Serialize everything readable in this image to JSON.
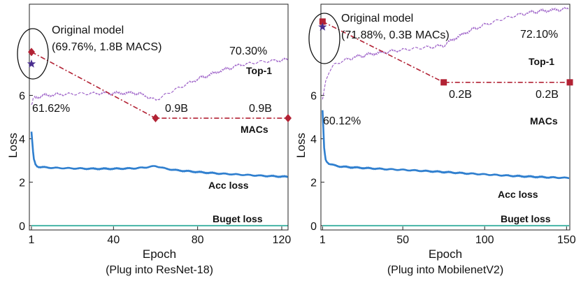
{
  "chart_data": [
    {
      "type": "line",
      "caption": "(Plug into ResNet-18)",
      "xlabel": "Epoch",
      "ylabel": "Loss",
      "xlim": [
        0,
        123
      ],
      "ylim": [
        -0.2,
        10.2
      ],
      "xticks": [
        1,
        40,
        80,
        120
      ],
      "yticks": [
        0,
        2,
        4,
        6
      ],
      "series": [
        {
          "name": "Acc loss",
          "color": "#2f7fcf",
          "x": [
            1,
            2,
            3,
            4,
            5,
            8,
            12,
            20,
            30,
            40,
            50,
            55,
            58,
            60,
            62,
            65,
            70,
            80,
            90,
            100,
            110,
            120,
            123
          ],
          "y": [
            4.3,
            3.1,
            2.8,
            2.72,
            2.7,
            2.68,
            2.66,
            2.64,
            2.62,
            2.62,
            2.64,
            2.68,
            2.72,
            2.74,
            2.7,
            2.62,
            2.55,
            2.47,
            2.4,
            2.35,
            2.3,
            2.26,
            2.25
          ]
        },
        {
          "name": "Buget loss",
          "color": "#38b0a0",
          "x": [
            1,
            123
          ],
          "y": [
            0.0,
            0.0
          ]
        },
        {
          "name": "Top-1",
          "color": "#9a5cc6",
          "x": [
            1,
            2,
            4,
            8,
            15,
            25,
            35,
            45,
            50,
            55,
            58,
            60,
            62,
            65,
            70,
            80,
            90,
            100,
            110,
            120,
            123
          ],
          "y": [
            5.5,
            5.85,
            5.95,
            6.0,
            6.05,
            6.08,
            6.1,
            6.1,
            6.12,
            6.0,
            5.85,
            5.78,
            5.88,
            6.05,
            6.3,
            6.75,
            7.1,
            7.4,
            7.55,
            7.62,
            7.65
          ]
        },
        {
          "name": "MACs",
          "color": "#b22234",
          "x": [
            1,
            60,
            123
          ],
          "y": [
            8.0,
            4.95,
            4.95
          ]
        }
      ],
      "star": {
        "x": 1,
        "y": 7.45,
        "color": "#4a2d8f"
      },
      "labels": {
        "original_title": "Original model",
        "original_values": "(69.76%, 1.8B MACS)",
        "top1_start": "61.62%",
        "top1_end": "70.30%",
        "macs_mid": "0.9B",
        "macs_end": "0.9B",
        "top1": "Top-1",
        "macs": "MACs",
        "acc_loss": "Acc loss",
        "budget_loss": "Buget loss"
      }
    },
    {
      "type": "line",
      "caption": "(Plug into MobilenetV2)",
      "xlabel": "Epoch",
      "ylabel": "Loss",
      "xlim": [
        0,
        152
      ],
      "ylim": [
        -0.2,
        10.2
      ],
      "xticks": [
        1,
        50,
        100,
        150
      ],
      "yticks": [
        0,
        2,
        4,
        6
      ],
      "series": [
        {
          "name": "Acc loss",
          "color": "#2f7fcf",
          "x": [
            1,
            2,
            3,
            5,
            8,
            12,
            20,
            30,
            40,
            50,
            60,
            75,
            90,
            100,
            120,
            140,
            150,
            152
          ],
          "y": [
            5.3,
            3.5,
            3.0,
            2.85,
            2.78,
            2.72,
            2.68,
            2.64,
            2.6,
            2.57,
            2.53,
            2.47,
            2.4,
            2.36,
            2.28,
            2.22,
            2.2,
            2.2
          ]
        },
        {
          "name": "Buget loss",
          "color": "#38b0a0",
          "x": [
            1,
            152
          ],
          "y": [
            0.0,
            0.0
          ]
        },
        {
          "name": "Top-1",
          "color": "#9a5cc6",
          "x": [
            1,
            3,
            5,
            8,
            12,
            20,
            30,
            40,
            50,
            60,
            70,
            75,
            80,
            90,
            100,
            110,
            120,
            130,
            140,
            150,
            152
          ],
          "y": [
            5.75,
            6.7,
            7.1,
            7.4,
            7.55,
            7.75,
            7.9,
            8.0,
            8.1,
            8.18,
            8.25,
            8.3,
            8.55,
            8.95,
            9.25,
            9.5,
            9.7,
            9.85,
            9.92,
            9.98,
            10.0
          ]
        },
        {
          "name": "MACs",
          "color": "#b22234",
          "x": [
            1,
            75,
            152
          ],
          "y": [
            9.4,
            6.6,
            6.6
          ]
        }
      ],
      "star": {
        "x": 1,
        "y": 9.15,
        "color": "#4a2d8f"
      },
      "labels": {
        "original_title": "Original model",
        "original_values": "(71.88%, 0.3B MACs)",
        "top1_start": "60.12%",
        "top1_end": "72.10%",
        "macs_mid": "0.2B",
        "macs_end": "0.2B",
        "top1": "Top-1",
        "macs": "MACs",
        "acc_loss": "Acc loss",
        "budget_loss": "Buget loss"
      }
    }
  ]
}
